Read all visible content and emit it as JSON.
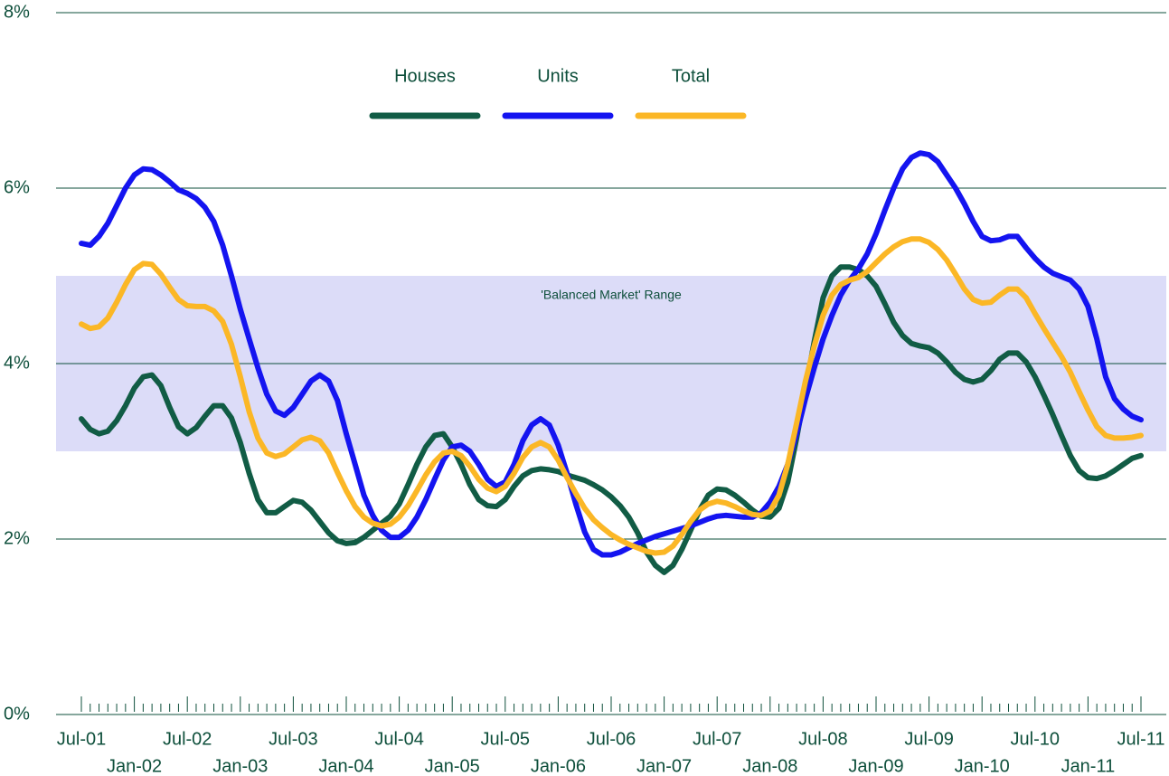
{
  "chart_data": {
    "type": "line",
    "categories": [
      "Jul-01",
      null,
      null,
      null,
      null,
      null,
      "Jan-02",
      null,
      null,
      null,
      null,
      null,
      "Jul-02",
      null,
      null,
      null,
      null,
      null,
      "Jan-03",
      null,
      null,
      null,
      null,
      null,
      "Jul-03",
      null,
      null,
      null,
      null,
      null,
      "Jan-04",
      null,
      null,
      null,
      null,
      null,
      "Jul-04",
      null,
      null,
      null,
      null,
      null,
      "Jan-05",
      null,
      null,
      null,
      null,
      null,
      "Jul-05",
      null,
      null,
      null,
      null,
      null,
      "Jan-06",
      null,
      null,
      null,
      null,
      null,
      "Jul-06",
      null,
      null,
      null,
      null,
      null,
      "Jan-07",
      null,
      null,
      null,
      null,
      null,
      "Jul-07",
      null,
      null,
      null,
      null,
      null,
      "Jan-08",
      null,
      null,
      null,
      null,
      null,
      "Jul-08",
      null,
      null,
      null,
      null,
      null,
      "Jan-09",
      null,
      null,
      null,
      null,
      null,
      "Jul-09",
      null,
      null,
      null,
      null,
      null,
      "Jan-10",
      null,
      null,
      null,
      null,
      null,
      "Jul-10",
      null,
      null,
      null,
      null,
      null,
      "Jan-11",
      null,
      null,
      null,
      null,
      null,
      "Jul-11"
    ],
    "series": [
      {
        "name": "Houses",
        "color": "#115c45",
        "values": [
          3.37,
          3.25,
          3.2,
          3.23,
          3.35,
          3.52,
          3.72,
          3.85,
          3.87,
          3.75,
          3.5,
          3.28,
          3.2,
          3.27,
          3.4,
          3.52,
          3.52,
          3.38,
          3.1,
          2.75,
          2.45,
          2.3,
          2.3,
          2.37,
          2.44,
          2.42,
          2.33,
          2.2,
          2.07,
          1.98,
          1.95,
          1.96,
          2.02,
          2.1,
          2.18,
          2.26,
          2.4,
          2.62,
          2.85,
          3.05,
          3.18,
          3.2,
          3.05,
          2.85,
          2.62,
          2.45,
          2.38,
          2.37,
          2.45,
          2.6,
          2.72,
          2.78,
          2.8,
          2.79,
          2.77,
          2.73,
          2.7,
          2.67,
          2.62,
          2.56,
          2.48,
          2.38,
          2.25,
          2.07,
          1.85,
          1.7,
          1.62,
          1.7,
          1.88,
          2.1,
          2.33,
          2.5,
          2.57,
          2.56,
          2.5,
          2.42,
          2.33,
          2.26,
          2.25,
          2.35,
          2.65,
          3.15,
          3.7,
          4.25,
          4.75,
          5.0,
          5.1,
          5.1,
          5.07,
          5.0,
          4.88,
          4.68,
          4.47,
          4.32,
          4.23,
          4.2,
          4.18,
          4.12,
          4.02,
          3.9,
          3.82,
          3.79,
          3.82,
          3.92,
          4.05,
          4.12,
          4.12,
          4.02,
          3.85,
          3.64,
          3.42,
          3.18,
          2.95,
          2.78,
          2.7,
          2.69,
          2.72,
          2.78,
          2.85,
          2.92,
          2.95
        ]
      },
      {
        "name": "Units",
        "color": "#1414f0",
        "values": [
          5.37,
          5.35,
          5.45,
          5.6,
          5.8,
          6.0,
          6.15,
          6.22,
          6.21,
          6.15,
          6.07,
          5.98,
          5.94,
          5.88,
          5.78,
          5.62,
          5.35,
          5.0,
          4.62,
          4.28,
          3.95,
          3.65,
          3.46,
          3.41,
          3.5,
          3.65,
          3.8,
          3.87,
          3.8,
          3.58,
          3.2,
          2.85,
          2.5,
          2.27,
          2.1,
          2.02,
          2.02,
          2.1,
          2.25,
          2.45,
          2.68,
          2.9,
          3.05,
          3.07,
          3.0,
          2.85,
          2.68,
          2.6,
          2.65,
          2.85,
          3.12,
          3.3,
          3.37,
          3.3,
          3.07,
          2.75,
          2.4,
          2.08,
          1.88,
          1.82,
          1.82,
          1.85,
          1.9,
          1.95,
          1.99,
          2.03,
          2.06,
          2.09,
          2.12,
          2.15,
          2.19,
          2.23,
          2.26,
          2.27,
          2.26,
          2.25,
          2.25,
          2.3,
          2.42,
          2.6,
          2.85,
          3.2,
          3.6,
          3.95,
          4.28,
          4.55,
          4.78,
          4.95,
          5.08,
          5.25,
          5.48,
          5.75,
          6.0,
          6.22,
          6.35,
          6.4,
          6.38,
          6.3,
          6.15,
          6.0,
          5.82,
          5.62,
          5.45,
          5.4,
          5.41,
          5.45,
          5.45,
          5.32,
          5.2,
          5.1,
          5.03,
          4.99,
          4.95,
          4.85,
          4.65,
          4.28,
          3.85,
          3.6,
          3.48,
          3.4,
          3.36
        ]
      },
      {
        "name": "Total",
        "color": "#fbb726",
        "values": [
          4.45,
          4.4,
          4.42,
          4.52,
          4.7,
          4.9,
          5.07,
          5.14,
          5.13,
          5.02,
          4.87,
          4.73,
          4.66,
          4.65,
          4.65,
          4.6,
          4.48,
          4.22,
          3.85,
          3.45,
          3.15,
          2.98,
          2.94,
          2.97,
          3.05,
          3.13,
          3.16,
          3.12,
          2.98,
          2.76,
          2.55,
          2.37,
          2.25,
          2.18,
          2.15,
          2.17,
          2.25,
          2.38,
          2.55,
          2.73,
          2.88,
          2.98,
          3.0,
          2.95,
          2.83,
          2.68,
          2.58,
          2.54,
          2.6,
          2.75,
          2.93,
          3.05,
          3.1,
          3.05,
          2.9,
          2.7,
          2.52,
          2.35,
          2.22,
          2.13,
          2.05,
          1.99,
          1.94,
          1.9,
          1.86,
          1.84,
          1.85,
          1.92,
          2.05,
          2.2,
          2.33,
          2.4,
          2.43,
          2.41,
          2.37,
          2.32,
          2.28,
          2.27,
          2.32,
          2.5,
          2.85,
          3.32,
          3.8,
          4.2,
          4.55,
          4.78,
          4.9,
          4.95,
          4.98,
          5.05,
          5.15,
          5.25,
          5.33,
          5.39,
          5.42,
          5.42,
          5.38,
          5.3,
          5.18,
          5.02,
          4.85,
          4.73,
          4.69,
          4.7,
          4.78,
          4.85,
          4.85,
          4.75,
          4.57,
          4.4,
          4.24,
          4.08,
          3.9,
          3.68,
          3.47,
          3.28,
          3.18,
          3.15,
          3.15,
          3.16,
          3.18
        ]
      }
    ],
    "band": {
      "label": "'Balanced Market' Range",
      "range": [
        3,
        5
      ],
      "color": "#dcdcf8"
    },
    "ylim": [
      0,
      8
    ],
    "yticks": [
      {
        "value": 0,
        "label": "0%"
      },
      {
        "value": 2,
        "label": "2%"
      },
      {
        "value": 4,
        "label": "4%"
      },
      {
        "value": 6,
        "label": "6%"
      },
      {
        "value": 8,
        "label": "8%"
      }
    ],
    "grid": true,
    "legend": "top"
  }
}
